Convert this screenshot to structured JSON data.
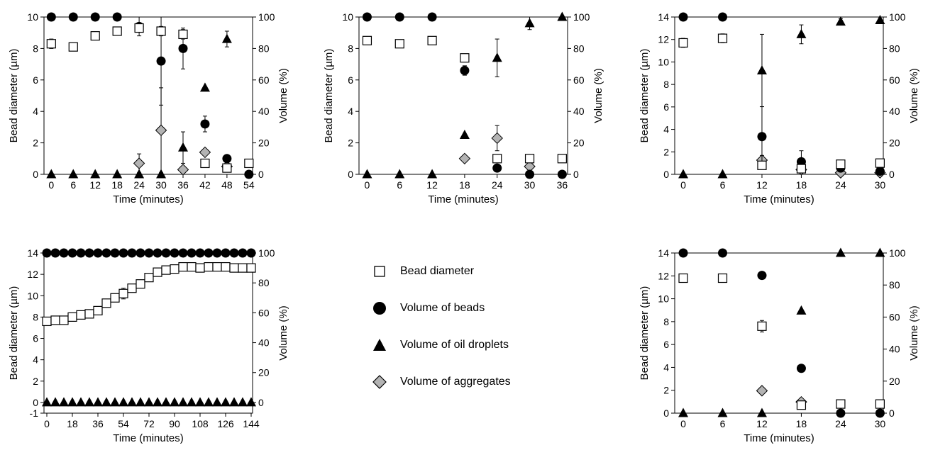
{
  "styles": {
    "square_fill": "#ffffff",
    "circle_fill": "#000000",
    "triangle_fill": "#000000",
    "diamond_fill": "#b3b3b3",
    "stroke": "#000000"
  },
  "legend": [
    {
      "marker": "square",
      "label": "Bead diameter"
    },
    {
      "marker": "circle",
      "label": "Volume of beads"
    },
    {
      "marker": "triangle",
      "label": "Volume of oil droplets"
    },
    {
      "marker": "diamond",
      "label": "Volume of aggregates"
    }
  ],
  "chart_data": [
    {
      "type": "scatter",
      "xlabel": "Time (minutes)",
      "ylabel": "Bead diameter (µm)",
      "y2label": "Volume (%)",
      "x_ticks": [
        0,
        6,
        12,
        18,
        24,
        30,
        36,
        42,
        48,
        54
      ],
      "xlim": [
        -2,
        55
      ],
      "y_ticks": [
        0,
        2,
        4,
        6,
        8,
        10
      ],
      "ylim": [
        0,
        10
      ],
      "y2_ticks": [
        0,
        20,
        40,
        60,
        80,
        100
      ],
      "y2lim": [
        0,
        100
      ],
      "series": [
        {
          "marker": "square",
          "axis": "left",
          "x": [
            0,
            6,
            12,
            18,
            24,
            30,
            36,
            42,
            48,
            54
          ],
          "y": [
            8.3,
            8.1,
            8.8,
            9.1,
            9.3,
            9.1,
            8.9,
            0.7,
            0.4,
            0.7
          ],
          "err": [
            0.3,
            0.2,
            0,
            0,
            0,
            0.3,
            0.3,
            0,
            0,
            0
          ]
        },
        {
          "marker": "circle",
          "axis": "right",
          "x": [
            0,
            6,
            12,
            18,
            24,
            30,
            36,
            42,
            48,
            54
          ],
          "y": [
            100,
            100,
            100,
            100,
            94,
            72,
            80,
            32,
            10,
            0
          ],
          "err": [
            0,
            0,
            0,
            0,
            6,
            28,
            13,
            5,
            0,
            0
          ]
        },
        {
          "marker": "triangle",
          "axis": "right",
          "x": [
            0,
            6,
            12,
            18,
            24,
            30,
            36,
            42,
            48
          ],
          "y": [
            0,
            0,
            0,
            0,
            0,
            0,
            17,
            55,
            86
          ],
          "err": [
            0,
            0,
            0,
            0,
            0,
            0,
            10,
            0,
            5
          ]
        },
        {
          "marker": "diamond",
          "axis": "right",
          "x": [
            24,
            30,
            36,
            42,
            48
          ],
          "y": [
            7,
            28,
            3,
            14,
            5
          ],
          "err": [
            6,
            27,
            0,
            0,
            0
          ]
        }
      ]
    },
    {
      "type": "scatter",
      "xlabel": "Time (minutes)",
      "ylabel": "Bead diameter (µm)",
      "y2label": "Volume (%)",
      "x_ticks": [
        0,
        6,
        12,
        18,
        24,
        30,
        36
      ],
      "xlim": [
        -1.5,
        37
      ],
      "y_ticks": [
        0,
        2,
        4,
        6,
        8,
        10
      ],
      "ylim": [
        0,
        10
      ],
      "y2_ticks": [
        0,
        20,
        40,
        60,
        80,
        100
      ],
      "y2lim": [
        0,
        100
      ],
      "series": [
        {
          "marker": "square",
          "axis": "left",
          "x": [
            0,
            6,
            12,
            18,
            24,
            30,
            36
          ],
          "y": [
            8.5,
            8.3,
            8.5,
            7.4,
            1.0,
            1.0,
            1.0
          ],
          "err": [
            0,
            0,
            0,
            0,
            0,
            0,
            0
          ]
        },
        {
          "marker": "circle",
          "axis": "right",
          "x": [
            0,
            6,
            12,
            18,
            24,
            30,
            36
          ],
          "y": [
            100,
            100,
            100,
            66,
            4,
            0,
            0
          ],
          "err": [
            0,
            0,
            0,
            3,
            0,
            0,
            0
          ]
        },
        {
          "marker": "triangle",
          "axis": "right",
          "x": [
            0,
            6,
            12,
            18,
            24,
            30,
            36
          ],
          "y": [
            0,
            0,
            0,
            25,
            74,
            96,
            100
          ],
          "err": [
            0,
            0,
            0,
            0,
            12,
            4,
            0
          ]
        },
        {
          "marker": "diamond",
          "axis": "right",
          "x": [
            18,
            24,
            30
          ],
          "y": [
            10,
            23,
            5
          ],
          "err": [
            0,
            8,
            0
          ]
        }
      ]
    },
    {
      "type": "scatter",
      "xlabel": "Time (minutes)",
      "ylabel": "Bead diameter (µm)",
      "y2label": "Volume (%)",
      "x_ticks": [
        0,
        6,
        12,
        18,
        24,
        30
      ],
      "xlim": [
        -1.3,
        30.5
      ],
      "y_ticks": [
        0,
        2,
        4,
        6,
        8,
        10,
        12,
        14
      ],
      "ylim": [
        0,
        14
      ],
      "y2_ticks": [
        0,
        20,
        40,
        60,
        80,
        100
      ],
      "y2lim": [
        0,
        100
      ],
      "series": [
        {
          "marker": "square",
          "axis": "left",
          "x": [
            0,
            6,
            12,
            18,
            24,
            30
          ],
          "y": [
            11.7,
            12.1,
            0.8,
            0.5,
            0.9,
            1.0
          ],
          "err": [
            0.4,
            0.4,
            0,
            0,
            0,
            0
          ]
        },
        {
          "marker": "circle",
          "axis": "right",
          "x": [
            0,
            6,
            12,
            18,
            24,
            30
          ],
          "y": [
            100,
            100,
            24,
            8,
            4,
            2
          ],
          "err": [
            0,
            0,
            19,
            7,
            0,
            0
          ]
        },
        {
          "marker": "triangle",
          "axis": "right",
          "x": [
            0,
            6,
            12,
            18,
            24,
            30
          ],
          "y": [
            0,
            0,
            66,
            89,
            97,
            98
          ],
          "err": [
            0,
            0,
            23,
            6,
            2,
            2
          ]
        },
        {
          "marker": "diamond",
          "axis": "right",
          "x": [
            12,
            18,
            24,
            30
          ],
          "y": [
            9,
            3,
            1,
            1
          ],
          "err": [
            3,
            2,
            0,
            0
          ]
        }
      ]
    },
    {
      "type": "scatter",
      "xlabel": "Time (minutes)",
      "ylabel": "Bead diameter (µm)",
      "y2label": "Volume (%)",
      "x_ticks": [
        0,
        18,
        36,
        54,
        72,
        90,
        108,
        126,
        144
      ],
      "xlim": [
        -2,
        145
      ],
      "y_ticks": [
        -1,
        0,
        2,
        4,
        6,
        8,
        10,
        12,
        14
      ],
      "ylim": [
        -1,
        14
      ],
      "y2_ticks": [
        0,
        20,
        40,
        60,
        80,
        100
      ],
      "y2lim": [
        0,
        100
      ],
      "series": [
        {
          "marker": "square",
          "axis": "left",
          "x": [
            0,
            6,
            12,
            18,
            24,
            30,
            36,
            42,
            48,
            54,
            60,
            66,
            72,
            78,
            84,
            90,
            96,
            102,
            108,
            114,
            120,
            126,
            132,
            138,
            144
          ],
          "y": [
            7.6,
            7.7,
            7.7,
            8.0,
            8.2,
            8.3,
            8.6,
            9.3,
            9.8,
            10.2,
            10.7,
            11.1,
            11.7,
            12.2,
            12.4,
            12.5,
            12.7,
            12.7,
            12.6,
            12.7,
            12.7,
            12.7,
            12.6,
            12.6,
            12.6
          ],
          "err": [
            0,
            0,
            0,
            0,
            0,
            0,
            0,
            0,
            0.3,
            0.5,
            0.3,
            0.3,
            0,
            0,
            0,
            0,
            0,
            0,
            0,
            0,
            0,
            0,
            0,
            0,
            0
          ]
        },
        {
          "marker": "circle",
          "axis": "right",
          "x": [
            0,
            6,
            12,
            18,
            24,
            30,
            36,
            42,
            48,
            54,
            60,
            66,
            72,
            78,
            84,
            90,
            96,
            102,
            108,
            114,
            120,
            126,
            132,
            138,
            144
          ],
          "y": [
            100,
            100,
            100,
            100,
            100,
            100,
            100,
            100,
            100,
            100,
            100,
            100,
            100,
            100,
            100,
            100,
            100,
            100,
            100,
            100,
            100,
            100,
            100,
            100,
            100
          ],
          "err": []
        },
        {
          "marker": "triangle",
          "axis": "right",
          "x": [
            0,
            6,
            12,
            18,
            24,
            30,
            36,
            42,
            48,
            54,
            60,
            66,
            72,
            78,
            84,
            90,
            96,
            102,
            108,
            114,
            120,
            126,
            132,
            138,
            144
          ],
          "y": [
            0,
            0,
            0,
            0,
            0,
            0,
            0,
            0,
            0,
            0,
            0,
            0,
            0,
            0,
            0,
            0,
            0,
            0,
            0,
            0,
            0,
            0,
            0,
            0,
            0
          ],
          "err": []
        }
      ]
    },
    {
      "type": "scatter",
      "xlabel": "Time (minutes)",
      "ylabel": "Bead diameter (µm)",
      "y2label": "Volume (%)",
      "x_ticks": [
        0,
        6,
        12,
        18,
        24,
        30
      ],
      "xlim": [
        -1.3,
        30.5
      ],
      "y_ticks": [
        0,
        2,
        4,
        6,
        8,
        10,
        12,
        14
      ],
      "ylim": [
        0,
        14
      ],
      "y2_ticks": [
        0,
        20,
        40,
        60,
        80,
        100
      ],
      "y2lim": [
        0,
        100
      ],
      "series": [
        {
          "marker": "square",
          "axis": "left",
          "x": [
            0,
            6,
            12,
            18,
            24,
            30
          ],
          "y": [
            11.8,
            11.8,
            7.6,
            0.7,
            0.8,
            0.8
          ],
          "err": [
            0.3,
            0,
            0.5,
            0,
            0,
            0
          ]
        },
        {
          "marker": "circle",
          "axis": "right",
          "x": [
            0,
            6,
            12,
            18,
            24,
            30
          ],
          "y": [
            100,
            100,
            86,
            28,
            0,
            0
          ],
          "err": [
            0,
            0,
            0,
            0,
            0,
            0
          ]
        },
        {
          "marker": "triangle",
          "axis": "right",
          "x": [
            0,
            6,
            12,
            18,
            24,
            30
          ],
          "y": [
            0,
            0,
            0,
            64,
            100,
            100
          ],
          "err": [
            0,
            0,
            0,
            0,
            0,
            0
          ]
        },
        {
          "marker": "diamond",
          "axis": "right",
          "x": [
            12,
            18
          ],
          "y": [
            14,
            7
          ],
          "err": [
            0,
            0
          ]
        }
      ]
    }
  ]
}
